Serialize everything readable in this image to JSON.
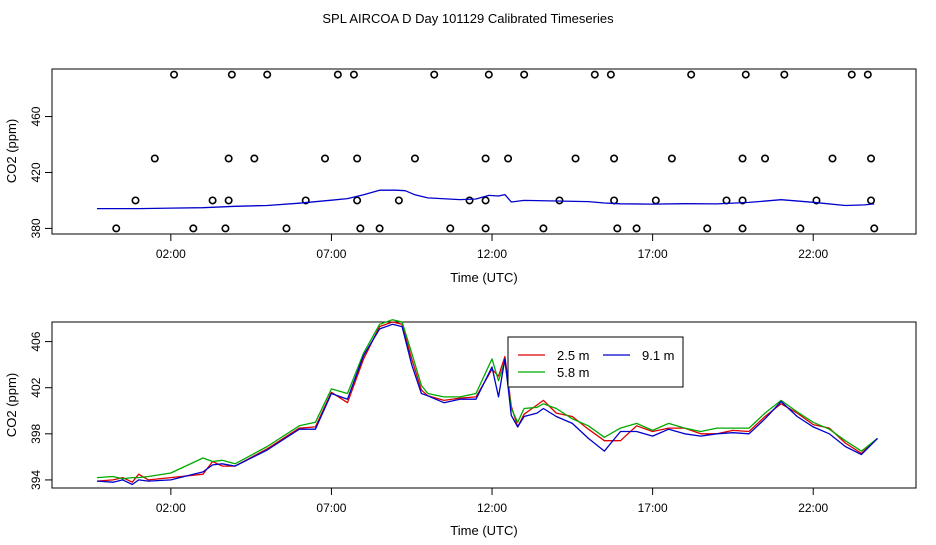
{
  "figure_title": "SPL AIRCOA D  Day 101129  Calibrated Timeseries",
  "chart_data": [
    {
      "type": "scatter+line",
      "title": "",
      "xlabel": "Time (UTC)",
      "ylabel": "CO2 (ppm)",
      "xlim": [
        -1.7,
        25.2
      ],
      "ylim": [
        376,
        494
      ],
      "x_ticks": [
        2,
        7,
        12,
        17,
        22
      ],
      "x_tick_labels": [
        "02:00",
        "07:00",
        "12:00",
        "17:00",
        "22:00"
      ],
      "y_ticks": [
        380,
        420,
        460
      ],
      "y_tick_labels": [
        "380",
        "420",
        "460"
      ],
      "flag_points": [
        {
          "x": 0.3,
          "y": 380
        },
        {
          "x": 0.9,
          "y": 400
        },
        {
          "x": 1.5,
          "y": 430
        },
        {
          "x": 2.1,
          "y": 490
        },
        {
          "x": 2.7,
          "y": 380
        },
        {
          "x": 3.3,
          "y": 400
        },
        {
          "x": 3.7,
          "y": 380
        },
        {
          "x": 3.8,
          "y": 400
        },
        {
          "x": 3.8,
          "y": 430
        },
        {
          "x": 3.9,
          "y": 490
        },
        {
          "x": 4.6,
          "y": 430
        },
        {
          "x": 5.0,
          "y": 490
        },
        {
          "x": 5.6,
          "y": 380
        },
        {
          "x": 6.2,
          "y": 400
        },
        {
          "x": 6.8,
          "y": 430
        },
        {
          "x": 7.2,
          "y": 490
        },
        {
          "x": 7.7,
          "y": 490
        },
        {
          "x": 7.8,
          "y": 430
        },
        {
          "x": 7.8,
          "y": 400
        },
        {
          "x": 7.9,
          "y": 380
        },
        {
          "x": 8.5,
          "y": 380
        },
        {
          "x": 9.1,
          "y": 400
        },
        {
          "x": 9.6,
          "y": 430
        },
        {
          "x": 10.2,
          "y": 490
        },
        {
          "x": 10.7,
          "y": 380
        },
        {
          "x": 11.3,
          "y": 400
        },
        {
          "x": 11.8,
          "y": 380
        },
        {
          "x": 11.8,
          "y": 400
        },
        {
          "x": 11.8,
          "y": 430
        },
        {
          "x": 11.9,
          "y": 490
        },
        {
          "x": 12.5,
          "y": 430
        },
        {
          "x": 13.0,
          "y": 490
        },
        {
          "x": 13.6,
          "y": 380
        },
        {
          "x": 14.1,
          "y": 400
        },
        {
          "x": 14.6,
          "y": 430
        },
        {
          "x": 15.2,
          "y": 490
        },
        {
          "x": 15.7,
          "y": 490
        },
        {
          "x": 15.8,
          "y": 430
        },
        {
          "x": 15.8,
          "y": 400
        },
        {
          "x": 15.9,
          "y": 380
        },
        {
          "x": 16.5,
          "y": 380
        },
        {
          "x": 17.1,
          "y": 400
        },
        {
          "x": 17.6,
          "y": 430
        },
        {
          "x": 18.2,
          "y": 490
        },
        {
          "x": 18.7,
          "y": 380
        },
        {
          "x": 19.3,
          "y": 400
        },
        {
          "x": 19.8,
          "y": 380
        },
        {
          "x": 19.8,
          "y": 400
        },
        {
          "x": 19.8,
          "y": 430
        },
        {
          "x": 19.9,
          "y": 490
        },
        {
          "x": 20.5,
          "y": 430
        },
        {
          "x": 21.1,
          "y": 490
        },
        {
          "x": 21.6,
          "y": 380
        },
        {
          "x": 22.1,
          "y": 400
        },
        {
          "x": 22.6,
          "y": 430
        },
        {
          "x": 23.2,
          "y": 490
        },
        {
          "x": 23.7,
          "y": 490
        },
        {
          "x": 23.8,
          "y": 430
        },
        {
          "x": 23.8,
          "y": 400
        },
        {
          "x": 23.9,
          "y": 380
        }
      ],
      "series": [
        {
          "name": "9.1 m",
          "color": "#0000cc",
          "x": [
            -0.3,
            1,
            2,
            3,
            4,
            5,
            6,
            7,
            7.5,
            8,
            8.5,
            9,
            9.3,
            9.6,
            10,
            11,
            11.5,
            11.9,
            12.2,
            12.4,
            12.6,
            13,
            14,
            15,
            15.5,
            16,
            17,
            18,
            19,
            20,
            21,
            22,
            23,
            23.6,
            23.9
          ],
          "y": [
            394.2,
            394.2,
            394.5,
            394.8,
            395.8,
            396.4,
            398.0,
            400.2,
            401.3,
            404.0,
            407.3,
            407.3,
            407.0,
            404.0,
            401.8,
            400.6,
            401.0,
            403.6,
            403.2,
            404.2,
            398.9,
            400.0,
            399.6,
            399.2,
            398.2,
            397.6,
            397.4,
            397.7,
            397.5,
            398.6,
            400.5,
            398.7,
            396.4,
            396.8,
            397.5
          ]
        }
      ]
    },
    {
      "type": "line",
      "title": "",
      "xlabel": "Time (UTC)",
      "ylabel": "CO2 (ppm)",
      "xlim": [
        -1.7,
        25.2
      ],
      "ylim": [
        393.3,
        407.7
      ],
      "x_ticks": [
        2,
        7,
        12,
        17,
        22
      ],
      "x_tick_labels": [
        "02:00",
        "07:00",
        "12:00",
        "17:00",
        "22:00"
      ],
      "y_ticks": [
        394,
        398,
        402,
        406
      ],
      "y_tick_labels": [
        "394",
        "398",
        "402",
        "406"
      ],
      "legend_location": "upper-center",
      "series": [
        {
          "name": "2.5 m",
          "color": "#dd0000",
          "x": [
            -0.3,
            0.2,
            0.5,
            0.8,
            1.0,
            1.3,
            2.0,
            3.0,
            3.3,
            3.6,
            4.0,
            5.0,
            6.0,
            6.5,
            7.0,
            7.5,
            8.0,
            8.5,
            8.9,
            9.2,
            9.5,
            9.8,
            10.0,
            10.5,
            11.0,
            11.5,
            12.0,
            12.2,
            12.4,
            12.6,
            12.8,
            13.0,
            13.4,
            13.6,
            14.0,
            14.5,
            15.0,
            15.5,
            16.0,
            16.5,
            17.0,
            17.5,
            18.0,
            18.5,
            19.0,
            19.5,
            20.0,
            20.5,
            21.0,
            21.5,
            22.0,
            22.5,
            23.0,
            23.5,
            24.0
          ],
          "y": [
            393.9,
            394.0,
            394.2,
            393.8,
            394.5,
            394.0,
            394.2,
            394.5,
            395.6,
            395.2,
            395.2,
            396.7,
            398.5,
            398.6,
            401.6,
            400.7,
            404.5,
            407.3,
            407.7,
            407.5,
            404.5,
            401.8,
            401.3,
            400.9,
            401.1,
            401.2,
            403.6,
            403.0,
            404.7,
            400.4,
            398.6,
            399.7,
            400.5,
            400.9,
            399.8,
            399.5,
            398.4,
            397.4,
            397.4,
            398.7,
            398.2,
            398.5,
            398.5,
            398.0,
            398.0,
            398.3,
            398.2,
            399.5,
            400.6,
            399.8,
            398.8,
            398.5,
            397.2,
            396.3,
            397.6
          ]
        },
        {
          "name": "5.8 m",
          "color": "#00aa00",
          "x": [
            -0.3,
            0.2,
            0.5,
            0.8,
            1.0,
            1.3,
            2.0,
            3.0,
            3.3,
            3.6,
            4.0,
            5.0,
            6.0,
            6.5,
            7.0,
            7.5,
            8.0,
            8.5,
            8.9,
            9.2,
            9.5,
            9.8,
            10.0,
            10.5,
            11.0,
            11.5,
            12.0,
            12.2,
            12.4,
            12.6,
            12.8,
            13.0,
            13.4,
            13.6,
            14.0,
            14.5,
            15.0,
            15.5,
            16.0,
            16.5,
            17.0,
            17.5,
            18.0,
            18.5,
            19.0,
            19.5,
            20.0,
            20.5,
            21.0,
            21.5,
            22.0,
            22.5,
            23.0,
            23.5,
            24.0
          ],
          "y": [
            394.2,
            394.3,
            394.1,
            394.2,
            394.2,
            394.3,
            394.6,
            395.9,
            395.6,
            395.7,
            395.4,
            396.9,
            398.7,
            399.0,
            401.9,
            401.5,
            405.0,
            407.5,
            407.9,
            407.7,
            405.0,
            402.2,
            401.5,
            401.2,
            401.2,
            401.5,
            404.5,
            402.6,
            404.3,
            400.2,
            399.0,
            400.2,
            400.3,
            400.6,
            400.2,
            399.3,
            398.7,
            397.7,
            398.5,
            398.9,
            398.3,
            398.9,
            398.5,
            398.2,
            398.5,
            398.5,
            398.5,
            399.8,
            400.9,
            399.9,
            399.0,
            398.4,
            397.4,
            396.5,
            397.6
          ]
        },
        {
          "name": "9.1 m",
          "color": "#0000cc",
          "x": [
            -0.3,
            0.2,
            0.5,
            0.8,
            1.0,
            1.3,
            2.0,
            3.0,
            3.3,
            3.6,
            4.0,
            5.0,
            6.0,
            6.5,
            7.0,
            7.5,
            8.0,
            8.5,
            8.9,
            9.2,
            9.5,
            9.8,
            10.0,
            10.5,
            11.0,
            11.5,
            12.0,
            12.2,
            12.4,
            12.6,
            12.8,
            13.0,
            13.4,
            13.6,
            14.0,
            14.5,
            15.0,
            15.5,
            16.0,
            16.5,
            17.0,
            17.5,
            18.0,
            18.5,
            19.0,
            19.5,
            20.0,
            20.5,
            21.0,
            21.5,
            22.0,
            22.5,
            23.0,
            23.5,
            24.0
          ],
          "y": [
            393.9,
            393.8,
            394.0,
            393.6,
            394.0,
            393.9,
            394.0,
            394.7,
            395.3,
            395.4,
            395.2,
            396.6,
            398.4,
            398.4,
            401.5,
            401.0,
            404.8,
            407.1,
            407.5,
            407.3,
            404.0,
            401.5,
            401.3,
            400.7,
            401.0,
            401.0,
            403.8,
            401.2,
            404.5,
            399.6,
            398.6,
            399.5,
            399.8,
            400.2,
            399.5,
            398.9,
            397.6,
            396.5,
            398.2,
            398.2,
            397.8,
            398.4,
            398.0,
            397.8,
            398.0,
            398.1,
            398.0,
            399.3,
            400.8,
            399.5,
            398.6,
            398.0,
            396.9,
            396.2,
            397.6
          ]
        }
      ]
    }
  ]
}
